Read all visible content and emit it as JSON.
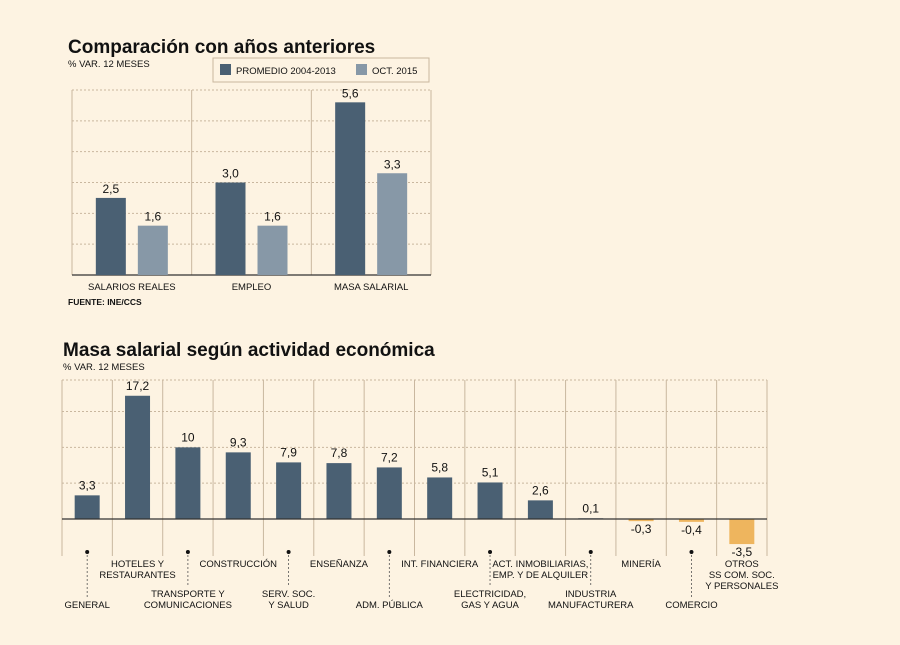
{
  "colors": {
    "dark": "#4a6073",
    "light": "#8798a7",
    "negative": "#eeb55e",
    "background": "#fdf3e2"
  },
  "chart_data": [
    {
      "type": "bar",
      "title": "Comparación con años anteriores",
      "subtitle": "% VAR. 12 MESES",
      "source": "FUENTE: INE/CCS",
      "categories": [
        "SALARIOS REALES",
        "EMPLEO",
        "MASA SALARIAL"
      ],
      "series": [
        {
          "name": "PROMEDIO 2004-2013",
          "values": [
            2.5,
            3.0,
            5.6
          ],
          "labels": [
            "2,5",
            "3,0",
            "5,6"
          ]
        },
        {
          "name": "OCT. 2015",
          "values": [
            1.6,
            1.6,
            3.3
          ],
          "labels": [
            "1,6",
            "1,6",
            "3,3"
          ]
        }
      ],
      "ylim": [
        0,
        6
      ],
      "legend": "top-right",
      "grid": true
    },
    {
      "type": "bar",
      "title": "Masa salarial según actividad económica",
      "subtitle": "% VAR. 12 MESES",
      "categories": [
        [
          "GENERAL"
        ],
        [
          "HOTELES Y",
          "RESTAURANTES"
        ],
        [
          "TRANSPORTE Y",
          "COMUNICACIONES"
        ],
        [
          "CONSTRUCCIÓN"
        ],
        [
          "SERV. SOC.",
          "Y SALUD"
        ],
        [
          "ENSEÑANZA"
        ],
        [
          "ADM. PÚBLICA"
        ],
        [
          "INT. FINANCIERA"
        ],
        [
          "ELECTRICIDAD,",
          "GAS Y AGUA"
        ],
        [
          "ACT. INMOBILIARIAS,",
          "EMP. Y DE ALQUILER"
        ],
        [
          "INDUSTRIA",
          "MANUFACTURERA"
        ],
        [
          "MINERÍA"
        ],
        [
          "COMERCIO"
        ],
        [
          "OTROS",
          "SS COM. SOC.",
          "Y PERSONALES"
        ]
      ],
      "values": [
        3.3,
        17.2,
        10,
        9.3,
        7.9,
        7.8,
        7.2,
        5.8,
        5.1,
        2.6,
        0.1,
        -0.3,
        -0.4,
        -3.5
      ],
      "labels": [
        "3,3",
        "17,2",
        "10",
        "9,3",
        "7,9",
        "7,8",
        "7,2",
        "5,8",
        "5,1",
        "2,6",
        "0,1",
        "-0,3",
        "-0,4",
        "-3,5"
      ],
      "ylim": [
        -5,
        20
      ],
      "grid": true
    }
  ]
}
